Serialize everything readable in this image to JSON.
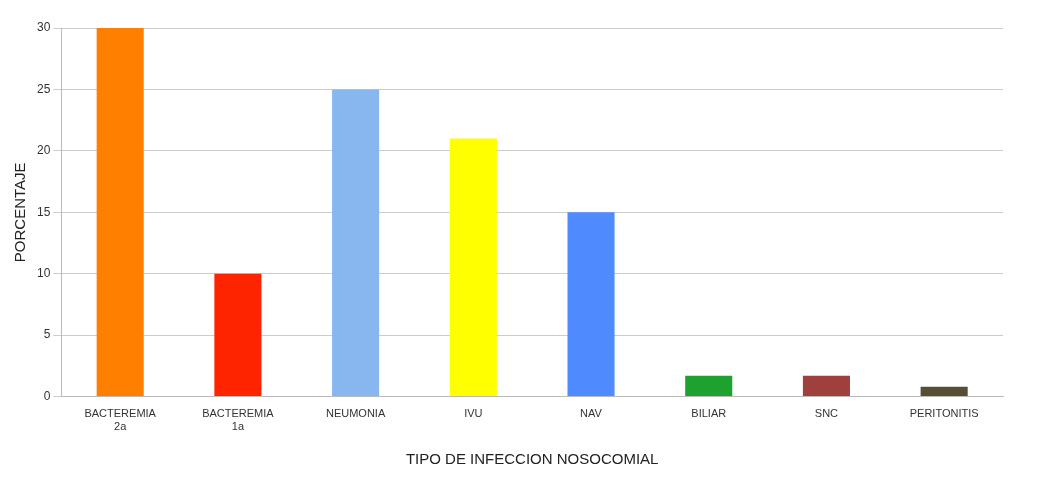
{
  "chart_data": {
    "type": "bar",
    "xlabel": "TIPO DE INFECCION NOSOCOMIAL",
    "ylabel": "PORCENTAJE",
    "categories": [
      "BACTEREMIA 2a",
      "BACTEREMIA 1a",
      "NEUMONIA",
      "IVU",
      "NAV",
      "BILIAR",
      "SNC",
      "PERITONITIS"
    ],
    "values": [
      30,
      10,
      25,
      21,
      15,
      1.7,
      1.7,
      0.8
    ],
    "colors": [
      "#ff7f00",
      "#ff2400",
      "#88b6ee",
      "#ffff00",
      "#4f8bff",
      "#1fa12f",
      "#a0403c",
      "#574f34"
    ],
    "ylim": [
      0,
      30
    ],
    "yticks": [
      0,
      5,
      10,
      15,
      20,
      25,
      30
    ],
    "grid": "y",
    "legend": false
  }
}
